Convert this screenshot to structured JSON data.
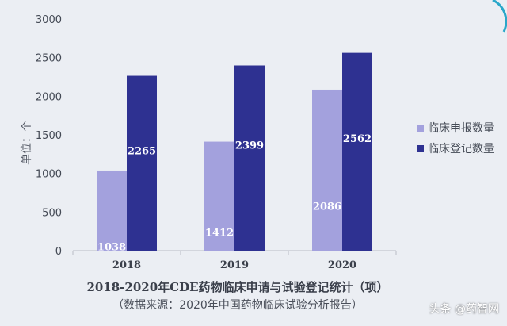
{
  "chart_data": {
    "type": "bar",
    "categories": [
      "2018",
      "2019",
      "2020"
    ],
    "series": [
      {
        "name": "临床申报数量",
        "values": [
          1038,
          1412,
          2086
        ],
        "color": "#a3a1dd"
      },
      {
        "name": "临床登记数量",
        "values": [
          2265,
          2399,
          2562
        ],
        "color": "#2e3191"
      }
    ],
    "ylabel": "单位：个",
    "ylim": [
      0,
      3000
    ],
    "yticks": [
      0,
      500,
      1000,
      1500,
      2000,
      2500,
      3000
    ],
    "legend_position": "right",
    "grid": false
  },
  "title": "2018-2020年CDE药物临床申请与试验登记统计（项）",
  "subtitle": "（数据来源：2020年中国药物临床试验分析报告）",
  "watermark": "头条 @药智网",
  "colors": {
    "background": "#ebeef3",
    "accent_arc": "#2aa7c9"
  }
}
